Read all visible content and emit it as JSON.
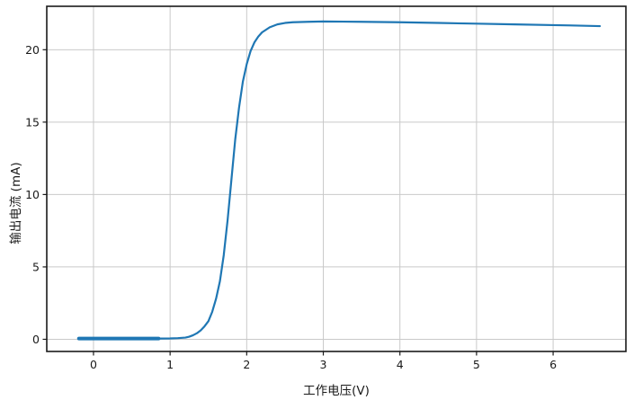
{
  "chart_data": {
    "type": "line",
    "title": "",
    "xlabel": "工作电压(V)",
    "ylabel": "输出电流 (mA)",
    "x_ticks": [
      0,
      1,
      2,
      3,
      4,
      5,
      6
    ],
    "x_tick_labels": [
      "0",
      "1",
      "2",
      "3",
      "4",
      "5",
      "6"
    ],
    "y_ticks": [
      0,
      5,
      10,
      15,
      20
    ],
    "y_tick_labels": [
      "0",
      "5",
      "10",
      "15",
      "20"
    ],
    "xlim": [
      -0.61,
      6.95
    ],
    "ylim": [
      -0.84,
      23.0
    ],
    "grid": true,
    "legend_position": "none",
    "line_color": "#1f77b4",
    "grid_color": "#c9c9c9",
    "spine_color": "#1a1a1a",
    "series": [
      {
        "name": "输出电流",
        "x": [
          -0.19,
          0.0,
          0.2,
          0.4,
          0.6,
          0.8,
          0.85,
          1.0,
          1.1,
          1.2,
          1.25,
          1.3,
          1.35,
          1.4,
          1.45,
          1.5,
          1.55,
          1.6,
          1.65,
          1.7,
          1.75,
          1.8,
          1.85,
          1.9,
          1.95,
          2.0,
          2.05,
          2.1,
          2.15,
          2.2,
          2.3,
          2.4,
          2.5,
          2.6,
          2.8,
          3.0,
          3.5,
          4.0,
          4.5,
          5.0,
          5.5,
          6.0,
          6.3,
          6.61
        ],
        "y": [
          0.05,
          0.05,
          0.05,
          0.05,
          0.05,
          0.05,
          0.05,
          0.06,
          0.08,
          0.12,
          0.18,
          0.28,
          0.42,
          0.62,
          0.9,
          1.25,
          1.9,
          2.8,
          4.0,
          5.8,
          8.2,
          11.0,
          13.8,
          16.0,
          17.8,
          19.0,
          19.9,
          20.5,
          20.9,
          21.2,
          21.55,
          21.75,
          21.85,
          21.9,
          21.93,
          21.95,
          21.93,
          21.9,
          21.85,
          21.8,
          21.75,
          21.7,
          21.67,
          21.63
        ],
        "thick_segment": {
          "x_start": -0.19,
          "x_end": 0.85
        }
      }
    ]
  }
}
